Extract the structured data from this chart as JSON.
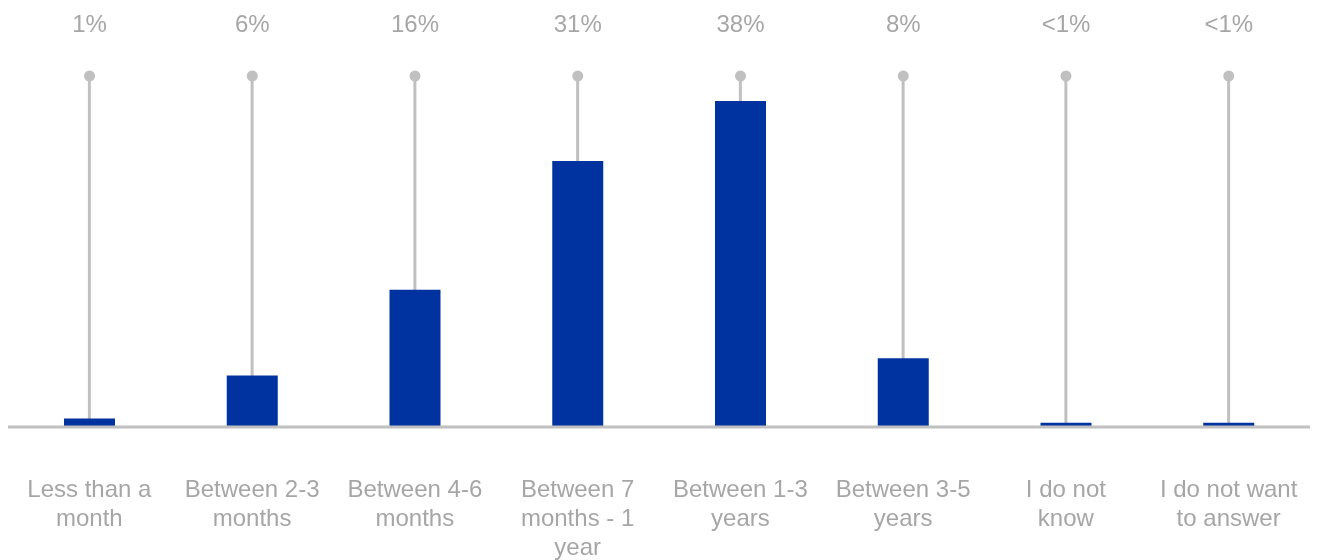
{
  "chart_data": {
    "type": "bar",
    "categories": [
      "Less than a month",
      "Between 2-3 months",
      "Between 4-6 months",
      "Between 7 months - 1 year",
      "Between 1-3 years",
      "Between 3-5 years",
      "I do not know",
      "I do not want to answer"
    ],
    "values": [
      1,
      6,
      16,
      31,
      38,
      8,
      0.5,
      0.5
    ],
    "value_labels": [
      "1%",
      "6%",
      "16%",
      "31%",
      "38%",
      "8%",
      "<1%",
      "<1%"
    ],
    "color": "#0033a0",
    "grid": "x"
  }
}
